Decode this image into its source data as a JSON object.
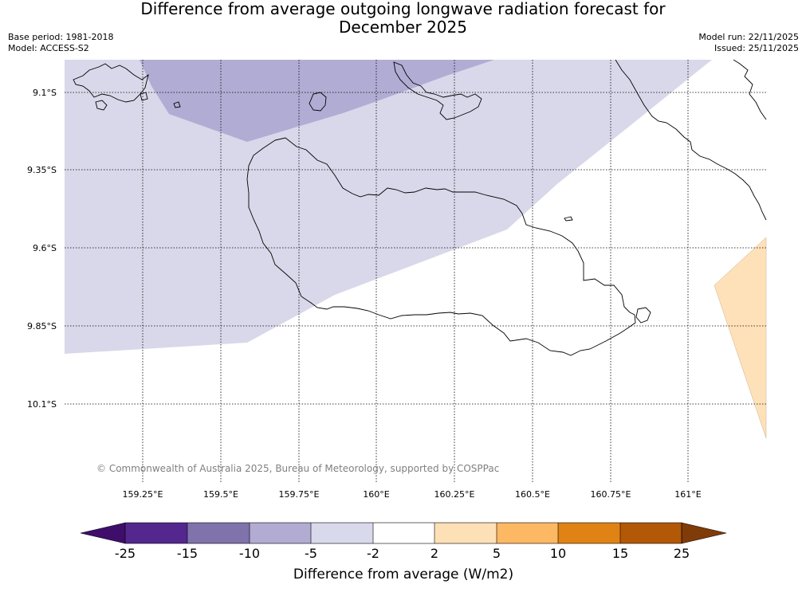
{
  "title": {
    "line1": "Difference from average outgoing longwave radiation forecast for",
    "line2": "December 2025"
  },
  "meta": {
    "base_period": "Base period: 1981-2018",
    "model": "Model: ACCESS-S2",
    "model_run": "Model run: 22/11/2025",
    "issued": "Issued: 25/11/2025"
  },
  "map": {
    "lat_labels": [
      "9.1°S",
      "9.35°S",
      "9.6°S",
      "9.85°S",
      "10.1°S"
    ],
    "lon_labels": [
      "159.25°E",
      "159.5°E",
      "159.75°E",
      "160°E",
      "160.25°E",
      "160.5°E",
      "160.75°E",
      "161°E"
    ],
    "copyright": "© Commonwealth of Australia 2025, Bureau of Meteorology, supported by COSPPac",
    "colors": {
      "ocean_bg": "#ffffff",
      "light_purple": "#d8d8ea",
      "mid_purple": "#b1acd4",
      "light_orange": "#fee1b8",
      "coast": "#000000",
      "grid": "#000000"
    }
  },
  "colorbar": {
    "title": "Difference from average (W/m2)",
    "tick_labels": [
      "-25",
      "-15",
      "-10",
      "-5",
      "-2",
      "2",
      "5",
      "10",
      "15",
      "25"
    ],
    "colors": [
      "#3f0e6b",
      "#54278f",
      "#8073ac",
      "#b2abd2",
      "#d8daeb",
      "#ffffff",
      "#fee0b6",
      "#fdb863",
      "#e08214",
      "#b35806",
      "#7f3b08"
    ]
  }
}
